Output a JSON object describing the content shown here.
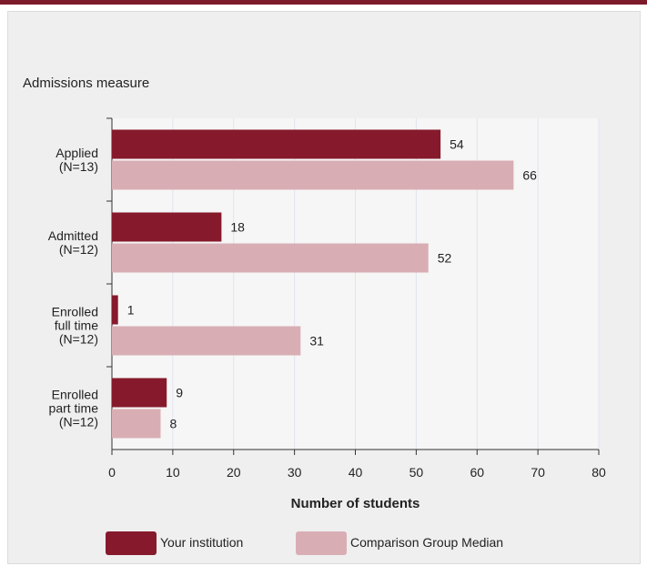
{
  "measure_label": "Admissions measure",
  "legend": {
    "your_institution": "Your institution",
    "comparison": "Comparison Group Median"
  },
  "colors": {
    "your_institution": "#861a2c",
    "comparison": "#d8aeb4",
    "top_bar": "#7d1a2a",
    "plot_bg": "#f6f6f6",
    "grid": "#e0e4ee"
  },
  "chart_data": {
    "type": "bar",
    "orientation": "horizontal",
    "title": "",
    "ylabel": "Admissions measure",
    "xlabel": "Number of students",
    "xlim": [
      0,
      80
    ],
    "xticks": [
      0,
      10,
      20,
      30,
      40,
      50,
      60,
      70,
      80
    ],
    "grid": true,
    "legend_position": "bottom",
    "categories": [
      [
        "Applied",
        "(N=13)"
      ],
      [
        "Admitted",
        "(N=12)"
      ],
      [
        "Enrolled",
        "full time",
        "(N=12)"
      ],
      [
        "Enrolled",
        "part time",
        "(N=12)"
      ]
    ],
    "series": [
      {
        "name": "Your institution",
        "values": [
          54,
          18,
          1,
          9
        ]
      },
      {
        "name": "Comparison Group Median",
        "values": [
          66,
          52,
          31,
          8
        ]
      }
    ]
  }
}
